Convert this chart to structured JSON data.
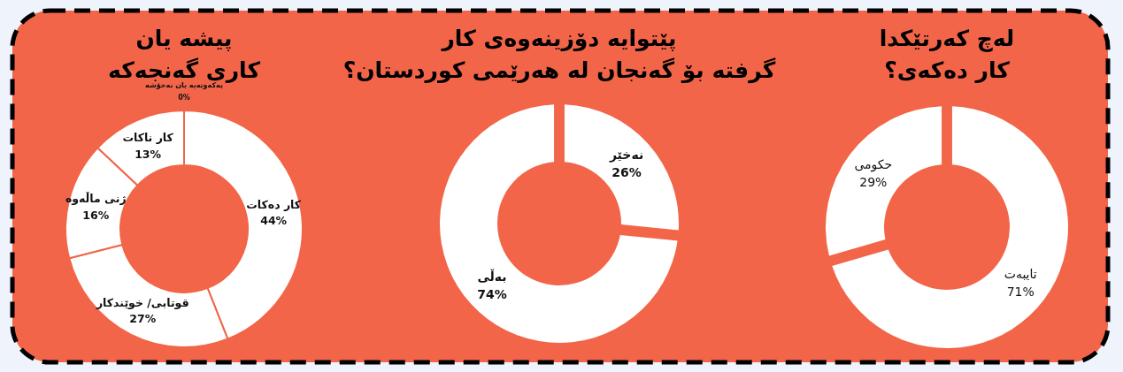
{
  "chart_data": [
    {
      "type": "donut",
      "title": "پیشە یان\nکاری گەنجەکە",
      "categories": [
        "کار دەکات",
        "قوتابی/ خوێندکار",
        "ژنی ماڵەوە",
        "کار ناکات",
        "پەکەوتەیە یان نەخۆشە"
      ],
      "values": [
        44,
        27,
        16,
        13,
        0
      ],
      "colors": [
        "#ffffff",
        "#ffffff",
        "#ffffff",
        "#ffffff",
        "#ffffff"
      ],
      "value_labels": [
        "44%",
        "27%",
        "16%",
        "13%",
        "0%"
      ]
    },
    {
      "type": "donut",
      "title": "پێتوایە دۆزینەوەی کار\nگرفتە بۆ گەنجان لە هەرێمی کوردستان؟",
      "categories": [
        "نەخێر",
        "بەڵی"
      ],
      "values": [
        26,
        74
      ],
      "colors": [
        "#ffffff",
        "#ffffff"
      ],
      "value_labels": [
        "26%",
        "74%"
      ]
    },
    {
      "type": "donut",
      "title": "لەچ کەرتێکدا\nکار دەکەی؟",
      "categories": [
        "تایبەت",
        "حکومی"
      ],
      "values": [
        71,
        29
      ],
      "colors": [
        "#ffffff",
        "#ffffff"
      ],
      "value_labels": [
        "71%",
        "29%"
      ]
    }
  ]
}
